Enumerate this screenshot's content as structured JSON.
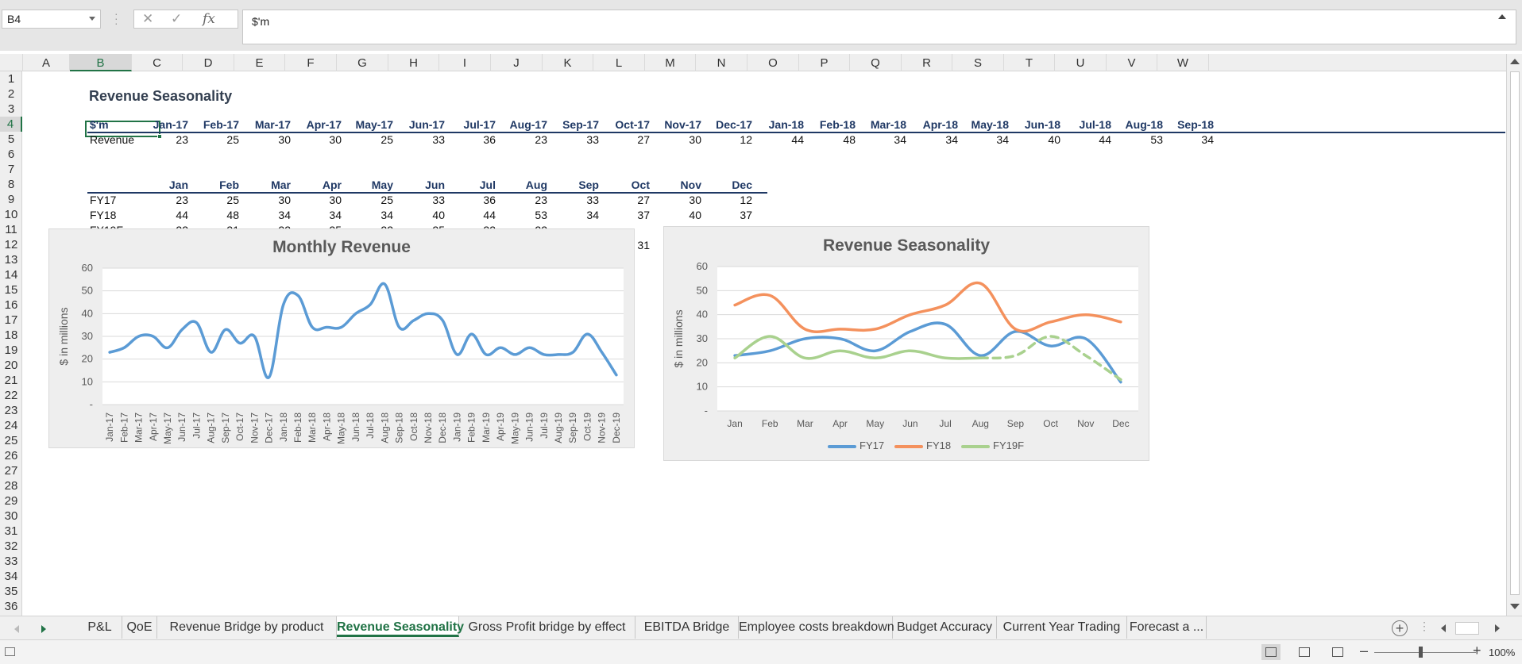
{
  "formula_bar": {
    "name_box": "B4",
    "cancel_icon": "✕",
    "enter_icon": "✓",
    "fx_label": "fx",
    "formula": "$'m"
  },
  "columns": [
    "A",
    "B",
    "C",
    "D",
    "E",
    "F",
    "G",
    "H",
    "I",
    "J",
    "K",
    "L",
    "M",
    "N",
    "O",
    "P",
    "Q",
    "R",
    "S",
    "T",
    "U",
    "V",
    "W"
  ],
  "selected_column": "B",
  "rows": [
    "1",
    "2",
    "3",
    "4",
    "5",
    "6",
    "7",
    "8",
    "9",
    "10",
    "11",
    "12",
    "13",
    "14",
    "15",
    "16",
    "17",
    "18",
    "19",
    "20",
    "21",
    "22",
    "23",
    "24",
    "25",
    "26",
    "27",
    "28",
    "29",
    "30",
    "31",
    "32",
    "33",
    "34",
    "35",
    "36"
  ],
  "selected_row": "4",
  "sheet": {
    "title": "Revenue Seasonality",
    "top_table": {
      "corner": "$'m",
      "months": [
        "Jan-17",
        "Feb-17",
        "Mar-17",
        "Apr-17",
        "May-17",
        "Jun-17",
        "Jul-17",
        "Aug-17",
        "Sep-17",
        "Oct-17",
        "Nov-17",
        "Dec-17",
        "Jan-18",
        "Feb-18",
        "Mar-18",
        "Apr-18",
        "May-18",
        "Jun-18",
        "Jul-18",
        "Aug-18",
        "Sep-18"
      ],
      "row_label": "Revenue",
      "values": [
        "23",
        "25",
        "30",
        "30",
        "25",
        "33",
        "36",
        "23",
        "33",
        "27",
        "30",
        "12",
        "44",
        "48",
        "34",
        "34",
        "34",
        "40",
        "44",
        "53",
        "34"
      ]
    },
    "season_table": {
      "months": [
        "Jan",
        "Feb",
        "Mar",
        "Apr",
        "May",
        "Jun",
        "Jul",
        "Aug",
        "Sep",
        "Oct",
        "Nov",
        "Dec"
      ],
      "rows": [
        {
          "label": "FY17",
          "values": [
            "23",
            "25",
            "30",
            "30",
            "25",
            "33",
            "36",
            "23",
            "33",
            "27",
            "30",
            "12"
          ]
        },
        {
          "label": "FY18",
          "values": [
            "44",
            "48",
            "34",
            "34",
            "34",
            "40",
            "44",
            "53",
            "34",
            "37",
            "40",
            "37"
          ]
        },
        {
          "label": "FY19F",
          "values": [
            "22",
            "31",
            "22",
            "25",
            "22",
            "25",
            "22",
            "22",
            "",
            "",
            "",
            ""
          ]
        },
        {
          "label": "",
          "values": [
            "",
            "",
            "",
            "",
            "",
            "",
            "",
            "22",
            "23",
            "31",
            "23",
            "13"
          ]
        }
      ]
    }
  },
  "chart_data": [
    {
      "type": "line",
      "title": "Monthly Revenue",
      "ylabel": "$ in millions",
      "xlabel": "",
      "ylim": [
        0,
        60
      ],
      "yticks": [
        "-",
        "10",
        "20",
        "30",
        "40",
        "50",
        "60"
      ],
      "x": [
        "Jan-17",
        "Feb-17",
        "Mar-17",
        "Apr-17",
        "May-17",
        "Jun-17",
        "Jul-17",
        "Aug-17",
        "Sep-17",
        "Oct-17",
        "Nov-17",
        "Dec-17",
        "Jan-18",
        "Feb-18",
        "Mar-18",
        "Apr-18",
        "May-18",
        "Jun-18",
        "Jul-18",
        "Aug-18",
        "Sep-18",
        "Oct-18",
        "Nov-18",
        "Dec-18",
        "Jan-19",
        "Feb-19",
        "Mar-19",
        "Apr-19",
        "May-19",
        "Jun-19",
        "Jul-19",
        "Aug-19",
        "Sep-19",
        "Oct-19",
        "Nov-19",
        "Dec-19"
      ],
      "series": [
        {
          "values": [
            23,
            25,
            30,
            30,
            25,
            33,
            36,
            23,
            33,
            27,
            30,
            12,
            44,
            48,
            34,
            34,
            34,
            40,
            44,
            53,
            34,
            37,
            40,
            37,
            22,
            31,
            22,
            25,
            22,
            25,
            22,
            22,
            23,
            31,
            23,
            13
          ],
          "color": "#5b9bd5"
        }
      ],
      "grid": true,
      "legend": "none"
    },
    {
      "type": "line",
      "title": "Revenue Seasonality",
      "ylabel": "$ in millions",
      "xlabel": "",
      "ylim": [
        0,
        60
      ],
      "yticks": [
        "-",
        "10",
        "20",
        "30",
        "40",
        "50",
        "60"
      ],
      "categories": [
        "Jan",
        "Feb",
        "Mar",
        "Apr",
        "May",
        "Jun",
        "Jul",
        "Aug",
        "Sep",
        "Oct",
        "Nov",
        "Dec"
      ],
      "series": [
        {
          "name": "FY17",
          "values": [
            23,
            25,
            30,
            30,
            25,
            33,
            36,
            23,
            33,
            27,
            30,
            12
          ],
          "color": "#5b9bd5",
          "style": "solid"
        },
        {
          "name": "FY18",
          "values": [
            44,
            48,
            34,
            34,
            34,
            40,
            44,
            53,
            34,
            37,
            40,
            37
          ],
          "color": "#f4915d",
          "style": "solid"
        },
        {
          "name": "FY19F",
          "values": [
            22,
            31,
            22,
            25,
            22,
            25,
            22,
            22,
            null,
            null,
            null,
            null
          ],
          "color": "#a9d18e",
          "style": "solid"
        },
        {
          "values": [
            null,
            null,
            null,
            null,
            null,
            null,
            null,
            22,
            23,
            31,
            23,
            13
          ],
          "color": "#a9d18e",
          "style": "dashed"
        }
      ],
      "grid": true,
      "legend": "bottom"
    }
  ],
  "tabs": [
    "P&L",
    "QoE",
    "Revenue Bridge by product",
    "Revenue Seasonality",
    "Gross Profit bridge by effect",
    "EBITDA Bridge",
    "Employee costs breakdown",
    "Budget Accuracy",
    "Current Year Trading",
    "Forecast a ..."
  ],
  "active_tab": "Revenue Seasonality",
  "add_sheet_label": "+",
  "status": {
    "zoom_minus": "–",
    "zoom_plus": "+",
    "zoom": "100%"
  },
  "colors": {
    "excel_green": "#217346",
    "header_navy": "#1f3864"
  }
}
